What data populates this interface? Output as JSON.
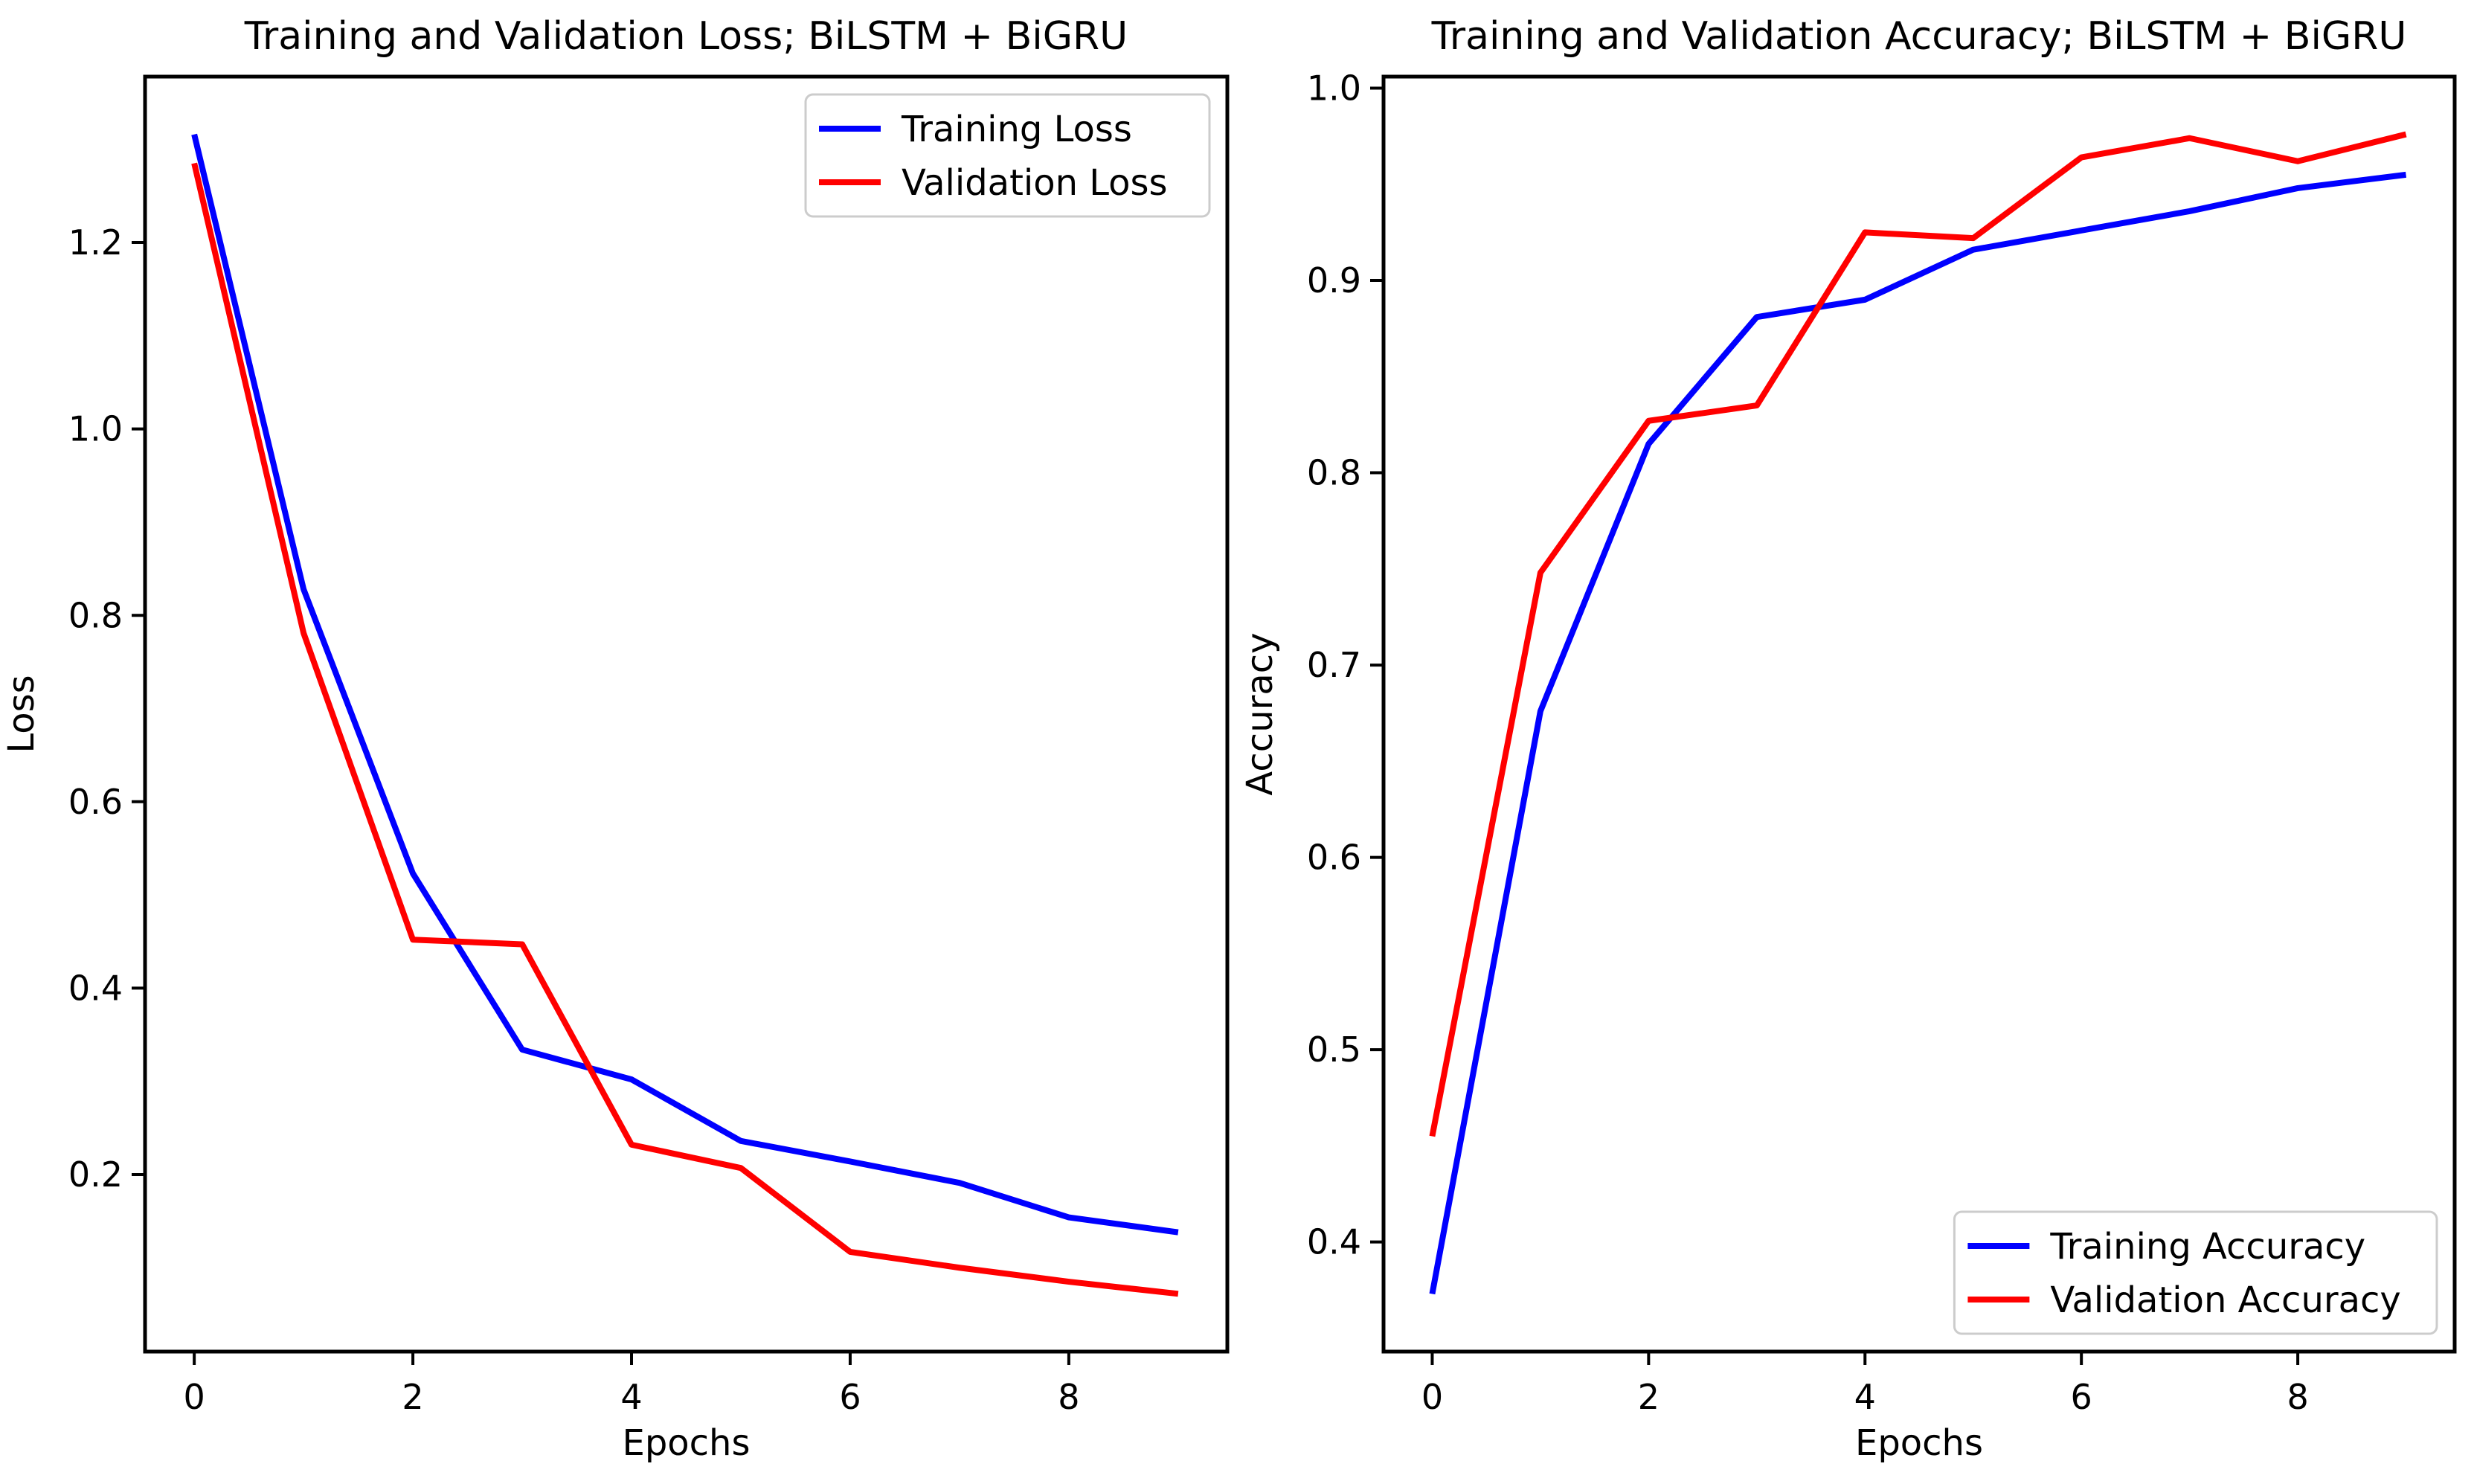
{
  "figure": {
    "background_color": "#ffffff",
    "text_color": "#000000",
    "spine_color": "#000000",
    "legend_border_color": "#cccccc"
  },
  "chart_data": [
    {
      "name": "loss-chart",
      "type": "line",
      "title": "Training and Validation Loss; BiLSTM + BiGRU",
      "xlabel": "Epochs",
      "ylabel": "Loss",
      "x": [
        0,
        1,
        2,
        3,
        4,
        5,
        6,
        7,
        8,
        9
      ],
      "series": [
        {
          "name": "Training Loss",
          "color": "#0000ff",
          "values": [
            1.316,
            0.828,
            0.523,
            0.334,
            0.302,
            0.236,
            0.214,
            0.191,
            0.154,
            0.138
          ]
        },
        {
          "name": "Validation Loss",
          "color": "#ff0000",
          "values": [
            1.285,
            0.781,
            0.452,
            0.447,
            0.232,
            0.207,
            0.117,
            0.1,
            0.085,
            0.072
          ]
        }
      ],
      "xticks": [
        0,
        2,
        4,
        6,
        8
      ],
      "yticks": [
        0.2,
        0.4,
        0.6,
        0.8,
        1.0,
        1.2
      ],
      "ytick_decimals": 1,
      "xlim": [
        -0.45,
        9.45
      ],
      "ylim": [
        0.01,
        1.378
      ],
      "grid": false,
      "legend_loc": "upper right"
    },
    {
      "name": "accuracy-chart",
      "type": "line",
      "title": "Training and Validation Accuracy; BiLSTM + BiGRU",
      "xlabel": "Epochs",
      "ylabel": "Accuracy",
      "x": [
        0,
        1,
        2,
        3,
        4,
        5,
        6,
        7,
        8,
        9
      ],
      "series": [
        {
          "name": "Training Accuracy",
          "color": "#0000ff",
          "values": [
            0.373,
            0.676,
            0.815,
            0.881,
            0.89,
            0.916,
            0.926,
            0.936,
            0.948,
            0.955
          ]
        },
        {
          "name": "Validation Accuracy",
          "color": "#ff0000",
          "values": [
            0.455,
            0.748,
            0.827,
            0.835,
            0.925,
            0.922,
            0.964,
            0.974,
            0.962,
            0.976
          ]
        }
      ],
      "xticks": [
        0,
        2,
        4,
        6,
        8
      ],
      "yticks": [
        0.4,
        0.5,
        0.6,
        0.7,
        0.8,
        0.9,
        1.0
      ],
      "ytick_decimals": 1,
      "xlim": [
        -0.45,
        9.45
      ],
      "ylim": [
        0.343,
        1.006
      ],
      "grid": false,
      "legend_loc": "lower right"
    }
  ]
}
